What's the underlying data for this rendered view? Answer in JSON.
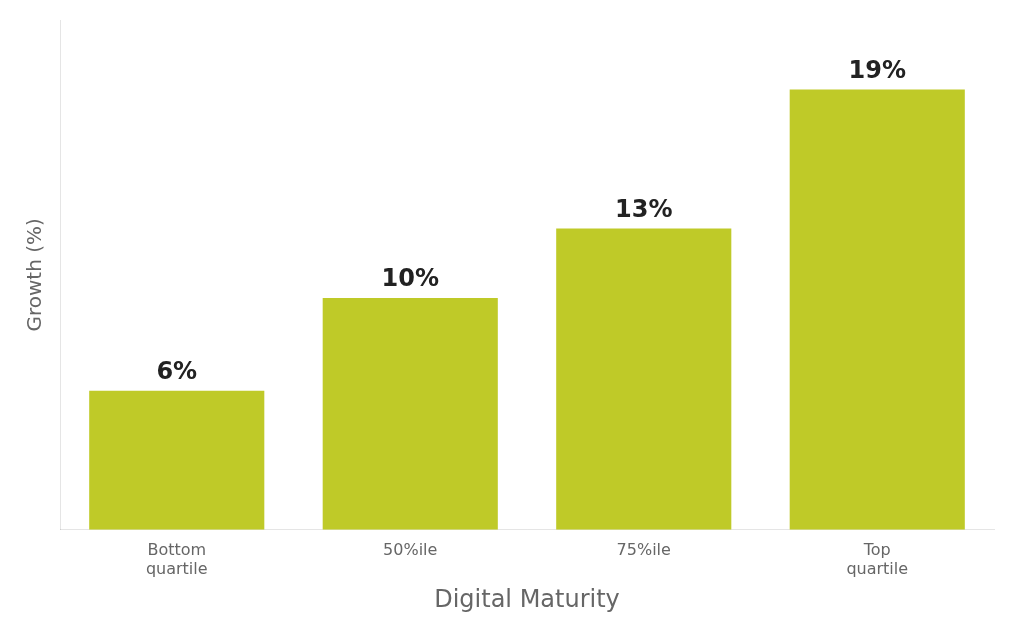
{
  "chart_data": {
    "type": "bar",
    "categories": [
      "Bottom\nquartile",
      "50%ile",
      "75%ile",
      "Top\nquartile"
    ],
    "values": [
      6,
      10,
      13,
      19
    ],
    "value_labels": [
      "6%",
      "10%",
      "13%",
      "19%"
    ],
    "data_labels": true,
    "color": "#BFCA28",
    "xlabel": "Digital Maturity",
    "ylabel": "Growth (%)",
    "ylim": [
      0,
      22
    ],
    "yticks": [],
    "grid": false,
    "tick_labels": "x"
  }
}
